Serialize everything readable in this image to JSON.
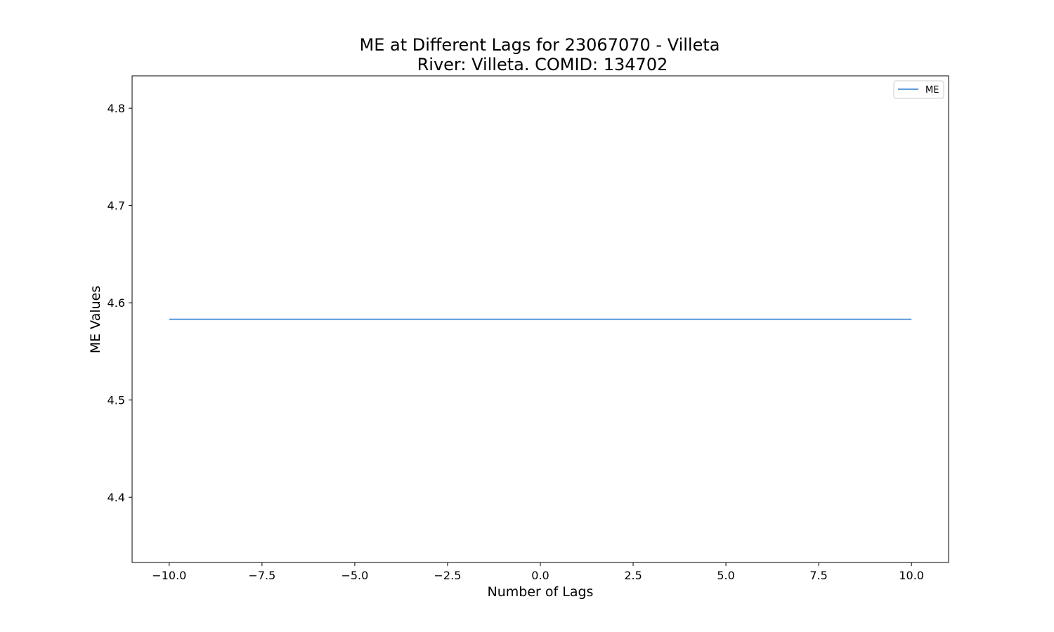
{
  "chart_data": {
    "type": "line",
    "title": "ME at Different Lags for 23067070 - Villeta",
    "subtitle": "River: Villeta. COMID: 134702",
    "xlabel": "Number of Lags",
    "ylabel": "ME Values",
    "xlim": [
      -11,
      11
    ],
    "ylim": [
      4.333,
      4.8333
    ],
    "xticks": [
      -10.0,
      -7.5,
      -5.0,
      -2.5,
      0.0,
      2.5,
      5.0,
      7.5,
      10.0
    ],
    "xtick_labels": [
      "−10.0",
      "−7.5",
      "−5.0",
      "−2.5",
      "0.0",
      "2.5",
      "5.0",
      "7.5",
      "10.0"
    ],
    "yticks": [
      4.4,
      4.5,
      4.6,
      4.7,
      4.8
    ],
    "ytick_labels": [
      "4.4",
      "4.5",
      "4.6",
      "4.7",
      "4.8"
    ],
    "grid": false,
    "legend_position": "top-right",
    "series": [
      {
        "name": "ME",
        "color": "#4a90d9",
        "x": [
          -10,
          -9,
          -8,
          -7,
          -6,
          -5,
          -4,
          -3,
          -2,
          -1,
          0,
          1,
          2,
          3,
          4,
          5,
          6,
          7,
          8,
          9,
          10
        ],
        "y": [
          4.583,
          4.583,
          4.583,
          4.583,
          4.583,
          4.583,
          4.583,
          4.583,
          4.583,
          4.583,
          4.583,
          4.583,
          4.583,
          4.583,
          4.583,
          4.583,
          4.583,
          4.583,
          4.583,
          4.583,
          4.583
        ]
      }
    ]
  }
}
